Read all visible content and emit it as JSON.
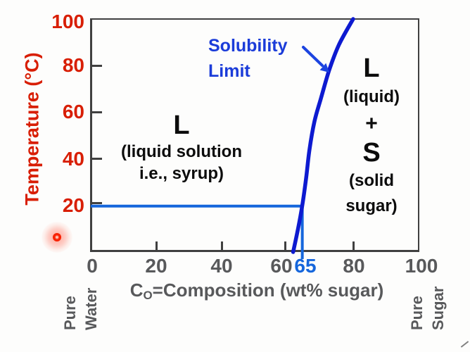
{
  "colors": {
    "red": "#d81e04",
    "gray": "#58595b",
    "axis": "#404040",
    "ink": "#0c0c0c",
    "callout": "#1b3cd9",
    "guide": "#1566dc"
  },
  "y_axis": {
    "title": "Temperature (°C)",
    "ticks": [
      "100",
      "80",
      "60",
      "40",
      "20"
    ]
  },
  "x_axis": {
    "title_symbol": "C",
    "title_sub": "O",
    "title_rest": "=Composition (wt% sugar)",
    "ticks": [
      "0",
      "20",
      "40",
      "60",
      "80",
      "100"
    ],
    "highlight_tick": "65"
  },
  "corner_labels": {
    "left_line1": "Pure",
    "left_line2": "Water",
    "right_line1": "Pure",
    "right_line2": "Sugar"
  },
  "regions": {
    "liquid": {
      "symbol": "L",
      "desc1": "(liquid solution",
      "desc2": "i.e., syrup)"
    },
    "liquid_plus_solid": {
      "symbol_liquid": "L",
      "desc_liquid": "(liquid)",
      "plus": "+",
      "symbol_solid": "S",
      "desc_solid1": "(solid",
      "desc_solid2": "sugar)"
    }
  },
  "callout": {
    "line1": "Solubility",
    "line2": "Limit"
  },
  "chart_data": {
    "type": "line",
    "title": "",
    "xlabel": "Co=Composition (wt% sugar)",
    "ylabel": "Temperature (°C)",
    "xlim": [
      0,
      100
    ],
    "ylim": [
      0,
      100
    ],
    "x_ticks": [
      0,
      20,
      40,
      60,
      65,
      80,
      100
    ],
    "y_ticks": [
      20,
      40,
      60,
      80,
      100
    ],
    "grid": false,
    "legend": "none",
    "series": [
      {
        "name": "Solubility Limit",
        "color": "#0d1ad0",
        "points_wtpct_vs_tempC": [
          [
            61.5,
            0
          ],
          [
            63,
            10
          ],
          [
            64.3,
            20
          ],
          [
            65.5,
            32
          ],
          [
            66.5,
            44
          ],
          [
            68,
            56
          ],
          [
            70,
            66
          ],
          [
            72.5,
            78
          ],
          [
            75.5,
            89
          ],
          [
            79.8,
            100
          ]
        ]
      }
    ],
    "guides": {
      "temperature_c": 20,
      "composition_wt_pct": 65,
      "color": "#1566dc"
    },
    "region_labels": [
      "L (liquid solution i.e., syrup)",
      "L (liquid) + S (solid sugar)"
    ]
  }
}
